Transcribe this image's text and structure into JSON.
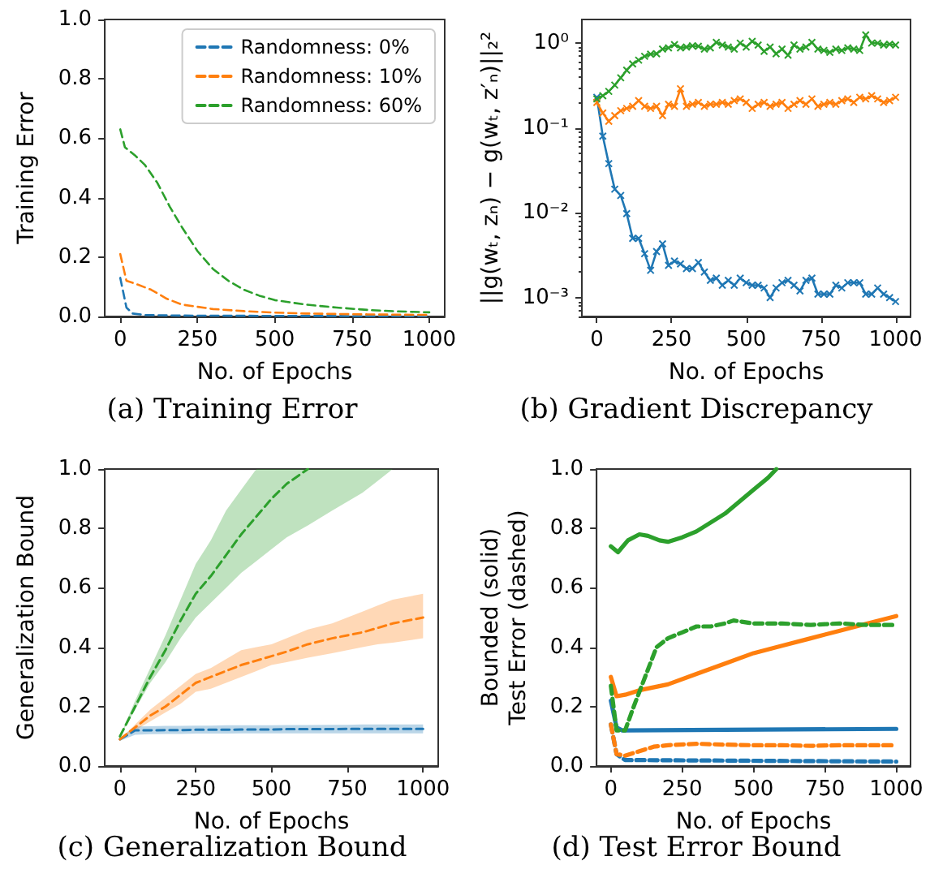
{
  "chart_data": [
    {
      "type": "line",
      "title": "(a) Training Error",
      "xlabel": "No. of Epochs",
      "ylabel": "Training Error",
      "xlim": [
        -50,
        1050
      ],
      "ylim": [
        0,
        1
      ],
      "xticks": [
        0,
        250,
        500,
        750,
        1000
      ],
      "yticks": [
        {
          "value": 0,
          "label": "0.0"
        },
        {
          "value": 0.2,
          "label": "0.2"
        },
        {
          "value": 0.4,
          "label": "0.4"
        },
        {
          "value": 0.6,
          "label": "0.6"
        },
        {
          "value": 0.8,
          "label": "0.8"
        },
        {
          "value": 1,
          "label": "1.0"
        }
      ],
      "legend": "top right",
      "marker": "none",
      "line_style": "dashed",
      "series": [
        {
          "name": "Randomness: 0%",
          "color": "#1f77b4",
          "x": [
            0,
            20,
            40,
            80,
            200,
            500,
            1000
          ],
          "values": [
            0.13,
            0.03,
            0.01,
            0.005,
            0.003,
            0.002,
            0.001
          ]
        },
        {
          "name": "Randomness: 10%",
          "color": "#ff7f0e",
          "x": [
            0,
            20,
            50,
            100,
            150,
            200,
            300,
            400,
            500,
            600,
            800,
            1000
          ],
          "values": [
            0.21,
            0.12,
            0.11,
            0.09,
            0.06,
            0.04,
            0.025,
            0.018,
            0.013,
            0.01,
            0.007,
            0.005
          ]
        },
        {
          "name": "Randomness: 60%",
          "color": "#2ca02c",
          "x": [
            0,
            15,
            50,
            80,
            120,
            160,
            200,
            250,
            300,
            350,
            400,
            450,
            500,
            600,
            700,
            800,
            900,
            1000
          ],
          "values": [
            0.63,
            0.57,
            0.54,
            0.51,
            0.45,
            0.37,
            0.3,
            0.22,
            0.16,
            0.12,
            0.09,
            0.07,
            0.055,
            0.04,
            0.03,
            0.022,
            0.017,
            0.014
          ]
        }
      ]
    },
    {
      "type": "line",
      "title": "(b) Gradient Discrepancy",
      "xlabel": "No. of Epochs",
      "ylabel": "||g(wₜ, zₙ) − g(wₜ, z′ₙ)||₂²",
      "log": "y",
      "xlim": [
        -50,
        1050
      ],
      "ylim": [
        0.0006,
        1.9
      ],
      "xticks": [
        0,
        250,
        500,
        750,
        1000
      ],
      "yticks": [
        {
          "value": 0.001,
          "label": "10⁻³"
        },
        {
          "value": 0.01,
          "label": "10⁻²"
        },
        {
          "value": 0.1,
          "label": "10⁻¹"
        },
        {
          "value": 1,
          "label": "10⁰"
        }
      ],
      "marker": "cross",
      "line_style": "solid",
      "x": [
        0,
        20,
        40,
        60,
        80,
        100,
        120,
        140,
        160,
        180,
        200,
        220,
        240,
        260,
        280,
        300,
        320,
        340,
        360,
        380,
        400,
        420,
        440,
        460,
        480,
        500,
        520,
        540,
        560,
        580,
        600,
        620,
        640,
        660,
        680,
        700,
        720,
        740,
        760,
        780,
        800,
        820,
        840,
        860,
        880,
        900,
        920,
        940,
        960,
        980,
        1000
      ],
      "series": [
        {
          "color": "#1f77b4",
          "values": [
            0.23,
            0.08,
            0.038,
            0.019,
            0.016,
            0.0098,
            0.005,
            0.005,
            0.0033,
            0.0021,
            0.0035,
            0.0043,
            0.0024,
            0.0027,
            0.0025,
            0.0022,
            0.0022,
            0.0026,
            0.002,
            0.0016,
            0.0017,
            0.0014,
            0.0016,
            0.0014,
            0.0017,
            0.0015,
            0.0014,
            0.0014,
            0.0013,
            0.001,
            0.0013,
            0.0015,
            0.0016,
            0.0014,
            0.0012,
            0.0016,
            0.0017,
            0.0011,
            0.0011,
            0.0011,
            0.0014,
            0.0013,
            0.0015,
            0.0015,
            0.0015,
            0.0011,
            0.0011,
            0.0013,
            0.0011,
            0.001,
            0.0009
          ]
        },
        {
          "color": "#ff7f0e",
          "values": [
            0.2,
            0.15,
            0.12,
            0.14,
            0.16,
            0.17,
            0.18,
            0.21,
            0.18,
            0.17,
            0.18,
            0.14,
            0.19,
            0.18,
            0.29,
            0.18,
            0.19,
            0.2,
            0.18,
            0.19,
            0.19,
            0.2,
            0.19,
            0.21,
            0.22,
            0.2,
            0.17,
            0.19,
            0.2,
            0.18,
            0.19,
            0.2,
            0.17,
            0.19,
            0.21,
            0.19,
            0.22,
            0.18,
            0.19,
            0.2,
            0.19,
            0.21,
            0.22,
            0.2,
            0.23,
            0.22,
            0.24,
            0.22,
            0.2,
            0.21,
            0.23
          ]
        },
        {
          "color": "#2ca02c",
          "values": [
            0.22,
            0.24,
            0.27,
            0.32,
            0.39,
            0.48,
            0.57,
            0.63,
            0.7,
            0.74,
            0.75,
            0.85,
            0.88,
            0.96,
            0.88,
            0.9,
            0.93,
            0.92,
            0.85,
            0.88,
            1.02,
            0.95,
            0.9,
            0.85,
            1.0,
            0.9,
            1.05,
            0.95,
            0.8,
            0.9,
            0.75,
            0.85,
            0.72,
            0.95,
            0.85,
            0.9,
            1.02,
            0.85,
            0.82,
            0.78,
            0.85,
            0.82,
            0.88,
            0.85,
            0.82,
            1.25,
            1.0,
            1.0,
            0.95,
            0.97,
            0.95
          ]
        }
      ]
    },
    {
      "type": "line",
      "title": "(c) Generalization Bound",
      "xlabel": "No. of Epochs",
      "ylabel": "Generalization Bound",
      "xlim": [
        -50,
        1050
      ],
      "ylim": [
        0,
        1
      ],
      "xticks": [
        0,
        250,
        500,
        750,
        1000
      ],
      "yticks": [
        {
          "value": 0,
          "label": "0.0"
        },
        {
          "value": 0.2,
          "label": "0.2"
        },
        {
          "value": 0.4,
          "label": "0.4"
        },
        {
          "value": 0.6,
          "label": "0.6"
        },
        {
          "value": 0.8,
          "label": "0.8"
        },
        {
          "value": 1,
          "label": "1.0"
        }
      ],
      "marker": "none",
      "line_style": "dashed",
      "x": [
        0,
        50,
        100,
        150,
        200,
        250,
        300,
        350,
        400,
        450,
        500,
        550,
        620,
        700,
        750,
        800,
        850,
        900,
        1000
      ],
      "series": [
        {
          "color": "#1f77b4",
          "values": [
            0.09,
            0.12,
            0.12,
            0.121,
            0.121,
            0.122,
            0.122,
            0.122,
            0.123,
            0.123,
            0.123,
            0.124,
            0.124,
            0.124,
            0.125,
            0.125,
            0.125,
            0.125,
            0.125
          ],
          "lower": [
            0.085,
            0.105,
            0.107,
            0.108,
            0.108,
            0.109,
            0.109,
            0.109,
            0.11,
            0.11,
            0.11,
            0.11,
            0.11,
            0.11,
            0.11,
            0.11,
            0.11,
            0.11,
            0.11
          ],
          "upper": [
            0.095,
            0.133,
            0.134,
            0.135,
            0.135,
            0.136,
            0.136,
            0.137,
            0.137,
            0.137,
            0.137,
            0.138,
            0.138,
            0.139,
            0.139,
            0.14,
            0.14,
            0.14,
            0.14
          ]
        },
        {
          "color": "#ff7f0e",
          "values": [
            0.09,
            0.13,
            0.17,
            0.2,
            0.24,
            0.28,
            0.3,
            0.32,
            0.34,
            0.355,
            0.37,
            0.385,
            0.41,
            0.43,
            0.44,
            0.45,
            0.465,
            0.48,
            0.5
          ],
          "lower": [
            0.09,
            0.12,
            0.15,
            0.18,
            0.21,
            0.25,
            0.26,
            0.28,
            0.3,
            0.32,
            0.34,
            0.35,
            0.365,
            0.38,
            0.39,
            0.4,
            0.41,
            0.415,
            0.43
          ],
          "upper": [
            0.09,
            0.14,
            0.19,
            0.23,
            0.27,
            0.31,
            0.33,
            0.36,
            0.39,
            0.4,
            0.41,
            0.43,
            0.46,
            0.48,
            0.5,
            0.52,
            0.54,
            0.56,
            0.58
          ]
        },
        {
          "color": "#2ca02c",
          "x": [
            0,
            50,
            100,
            150,
            200,
            250,
            300,
            350,
            400,
            450,
            500,
            550,
            620,
            700,
            750,
            800,
            850,
            900
          ],
          "values": [
            0.1,
            0.2,
            0.3,
            0.39,
            0.49,
            0.58,
            0.64,
            0.71,
            0.78,
            0.84,
            0.9,
            0.95,
            1.0,
            null,
            null,
            null,
            null,
            null
          ],
          "lower": [
            0.1,
            0.19,
            0.28,
            0.35,
            0.43,
            0.5,
            0.55,
            0.6,
            0.65,
            0.69,
            0.73,
            0.77,
            0.81,
            0.86,
            0.89,
            0.92,
            0.96,
            1.0
          ],
          "upper": [
            0.1,
            0.22,
            0.33,
            0.44,
            0.56,
            0.68,
            0.76,
            0.86,
            0.93,
            1.0,
            1.0,
            1.0,
            1.0,
            1.0,
            1.0,
            1.0,
            1.0,
            1.0
          ]
        }
      ]
    },
    {
      "type": "line",
      "title": "(d) Test Error Bound",
      "xlabel": "No. of Epochs",
      "ylabel": "Bounded (solid)\nTest Error (dashed)",
      "xlim": [
        -50,
        1050
      ],
      "ylim": [
        0,
        1
      ],
      "xticks": [
        0,
        250,
        500,
        750,
        1000
      ],
      "yticks": [
        {
          "value": 0,
          "label": "0.0"
        },
        {
          "value": 0.2,
          "label": "0.2"
        },
        {
          "value": 0.4,
          "label": "0.4"
        },
        {
          "value": 0.6,
          "label": "0.6"
        },
        {
          "value": 0.8,
          "label": "0.8"
        },
        {
          "value": 1,
          "label": "1.0"
        }
      ],
      "marker": "none",
      "series": [
        {
          "color": "#1f77b4",
          "line_style": "solid",
          "x": [
            0,
            20,
            40,
            1000
          ],
          "values": [
            0.22,
            0.13,
            0.12,
            0.125
          ]
        },
        {
          "color": "#1f77b4",
          "line_style": "dashed",
          "x": [
            0,
            20,
            50,
            100,
            1000
          ],
          "values": [
            0.14,
            0.04,
            0.02,
            0.02,
            0.015
          ]
        },
        {
          "color": "#ff7f0e",
          "line_style": "solid",
          "x": [
            0,
            20,
            50,
            100,
            200,
            300,
            400,
            500,
            600,
            700,
            800,
            900,
            1000
          ],
          "values": [
            0.3,
            0.235,
            0.24,
            0.255,
            0.275,
            0.31,
            0.345,
            0.38,
            0.405,
            0.43,
            0.455,
            0.48,
            0.505
          ]
        },
        {
          "color": "#ff7f0e",
          "line_style": "dashed",
          "x": [
            0,
            20,
            50,
            100,
            150,
            200,
            300,
            400,
            500,
            600,
            700,
            800,
            1000
          ],
          "values": [
            0.14,
            0.04,
            0.035,
            0.05,
            0.065,
            0.07,
            0.075,
            0.072,
            0.07,
            0.07,
            0.068,
            0.07,
            0.07
          ]
        },
        {
          "color": "#2ca02c",
          "line_style": "solid",
          "x": [
            0,
            25,
            60,
            100,
            130,
            170,
            200,
            250,
            300,
            350,
            400,
            450,
            500,
            550,
            580
          ],
          "values": [
            0.74,
            0.72,
            0.76,
            0.78,
            0.775,
            0.76,
            0.755,
            0.77,
            0.79,
            0.82,
            0.85,
            0.89,
            0.93,
            0.97,
            1.0
          ]
        },
        {
          "color": "#2ca02c",
          "line_style": "dashed",
          "x": [
            0,
            20,
            50,
            80,
            120,
            160,
            200,
            250,
            300,
            350,
            400,
            430,
            500,
            600,
            700,
            800,
            900,
            1000
          ],
          "values": [
            0.27,
            0.12,
            0.12,
            0.2,
            0.3,
            0.4,
            0.43,
            0.45,
            0.47,
            0.47,
            0.48,
            0.49,
            0.48,
            0.48,
            0.475,
            0.48,
            0.475,
            0.475
          ]
        }
      ]
    }
  ]
}
